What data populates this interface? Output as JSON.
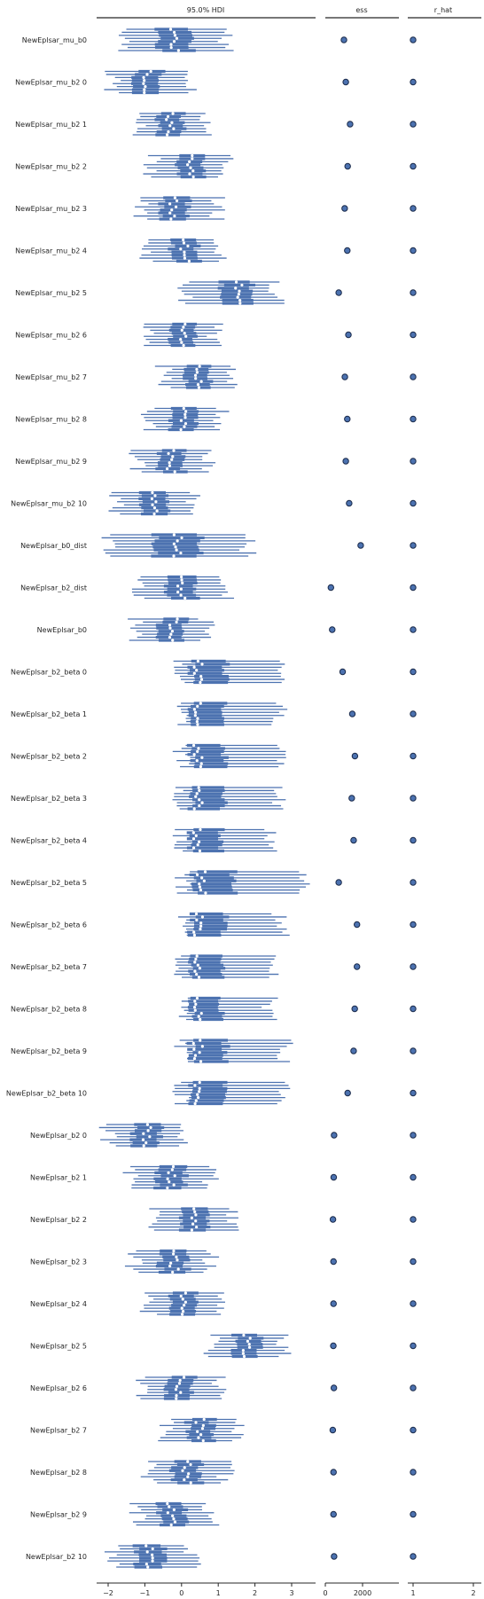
{
  "chart_data": {
    "type": "forest",
    "panels": {
      "hdi": {
        "title": "95.0% HDI",
        "xlim": [
          -2.3,
          3.6
        ],
        "ticks": [
          -2,
          -1,
          0,
          1,
          2,
          3
        ],
        "tick_labels": [
          "−2",
          "−1",
          "0",
          "1",
          "2",
          "3"
        ]
      },
      "ess": {
        "title": "ess",
        "xlim": [
          0,
          2000
        ],
        "ticks": [
          0,
          2000
        ],
        "tick_labels": [
          "0",
          "2000"
        ]
      },
      "r_hat": {
        "title": "r_hat",
        "xlim": [
          0.92,
          2.2
        ],
        "ticks": [
          1,
          2
        ],
        "tick_labels": [
          "1",
          "2"
        ]
      }
    },
    "variables": [
      {
        "label": "NewEplsar_mu_b0",
        "mean": -0.2,
        "hdi_low": -1.5,
        "hdi_high": 1.2,
        "ess": 1000,
        "r_hat": 1.0
      },
      {
        "label": "NewEplsar_mu_b2 0",
        "mean": -0.95,
        "hdi_low": -1.9,
        "hdi_high": 0.2,
        "ess": 1100,
        "r_hat": 1.0
      },
      {
        "label": "NewEplsar_mu_b2 1",
        "mean": -0.3,
        "hdi_low": -1.2,
        "hdi_high": 0.7,
        "ess": 1330,
        "r_hat": 1.0
      },
      {
        "label": "NewEplsar_mu_b2 2",
        "mean": 0.2,
        "hdi_low": -0.8,
        "hdi_high": 1.2,
        "ess": 1200,
        "r_hat": 1.0
      },
      {
        "label": "NewEplsar_mu_b2 3",
        "mean": -0.2,
        "hdi_low": -1.1,
        "hdi_high": 1.0,
        "ess": 1040,
        "r_hat": 1.0
      },
      {
        "label": "NewEplsar_mu_b2 4",
        "mean": 0.1,
        "hdi_low": -0.9,
        "hdi_high": 1.1,
        "ess": 1180,
        "r_hat": 1.0
      },
      {
        "label": "NewEplsar_mu_b2 5",
        "mean": 1.55,
        "hdi_low": 0.1,
        "hdi_high": 2.6,
        "ess": 720,
        "r_hat": 1.0
      },
      {
        "label": "NewEplsar_mu_b2 6",
        "mean": 0.0,
        "hdi_low": -1.0,
        "hdi_high": 0.9,
        "ess": 1240,
        "r_hat": 1.0
      },
      {
        "label": "NewEplsar_mu_b2 7",
        "mean": 0.5,
        "hdi_low": -0.5,
        "hdi_high": 1.4,
        "ess": 1050,
        "r_hat": 1.0
      },
      {
        "label": "NewEplsar_mu_b2 8",
        "mean": 0.1,
        "hdi_low": -0.9,
        "hdi_high": 1.1,
        "ess": 1180,
        "r_hat": 1.0
      },
      {
        "label": "NewEplsar_mu_b2 9",
        "mean": -0.3,
        "hdi_low": -1.2,
        "hdi_high": 0.7,
        "ess": 1100,
        "r_hat": 1.0
      },
      {
        "label": "NewEplsar_mu_b2 10",
        "mean": -0.75,
        "hdi_low": -1.8,
        "hdi_high": 0.3,
        "ess": 1280,
        "r_hat": 1.0
      },
      {
        "label": "NewEplsar_b0_dist",
        "mean": -0.1,
        "hdi_low": -2.0,
        "hdi_high": 1.8,
        "ess": 1900,
        "r_hat": 1.0
      },
      {
        "label": "NewEplsar_b2_dist",
        "mean": 0.0,
        "hdi_low": -1.1,
        "hdi_high": 1.2,
        "ess": 300,
        "r_hat": 1.0
      },
      {
        "label": "NewEplsar_b0",
        "mean": -0.2,
        "hdi_low": -1.3,
        "hdi_high": 0.7,
        "ess": 370,
        "r_hat": 1.0
      },
      {
        "label": "NewEplsar_b2_beta 0",
        "mean": 0.45,
        "hdi_low": 0.0,
        "hdi_high": 2.8,
        "ess": 930,
        "r_hat": 1.0
      },
      {
        "label": "NewEplsar_b2_beta 1",
        "mean": 0.45,
        "hdi_low": 0.0,
        "hdi_high": 2.7,
        "ess": 1450,
        "r_hat": 1.0
      },
      {
        "label": "NewEplsar_b2_beta 2",
        "mean": 0.45,
        "hdi_low": 0.0,
        "hdi_high": 2.7,
        "ess": 1590,
        "r_hat": 1.0
      },
      {
        "label": "NewEplsar_b2_beta 3",
        "mean": 0.45,
        "hdi_low": 0.0,
        "hdi_high": 2.6,
        "ess": 1420,
        "r_hat": 1.0
      },
      {
        "label": "NewEplsar_b2_beta 4",
        "mean": 0.45,
        "hdi_low": 0.0,
        "hdi_high": 2.5,
        "ess": 1520,
        "r_hat": 1.0
      },
      {
        "label": "NewEplsar_b2_beta 5",
        "mean": 0.55,
        "hdi_low": 0.0,
        "hdi_high": 3.3,
        "ess": 720,
        "r_hat": 1.0
      },
      {
        "label": "NewEplsar_b2_beta 6",
        "mean": 0.45,
        "hdi_low": 0.0,
        "hdi_high": 2.7,
        "ess": 1700,
        "r_hat": 1.0
      },
      {
        "label": "NewEplsar_b2_beta 7",
        "mean": 0.45,
        "hdi_low": 0.0,
        "hdi_high": 2.6,
        "ess": 1700,
        "r_hat": 1.0
      },
      {
        "label": "NewEplsar_b2_beta 8",
        "mean": 0.45,
        "hdi_low": 0.0,
        "hdi_high": 2.4,
        "ess": 1580,
        "r_hat": 1.0
      },
      {
        "label": "NewEplsar_b2_beta 9",
        "mean": 0.45,
        "hdi_low": 0.0,
        "hdi_high": 2.8,
        "ess": 1520,
        "r_hat": 1.0
      },
      {
        "label": "NewEplsar_b2_beta 10",
        "mean": 0.45,
        "hdi_low": 0.0,
        "hdi_high": 2.8,
        "ess": 1200,
        "r_hat": 1.0
      },
      {
        "label": "NewEplsar_b2 0",
        "mean": -0.95,
        "hdi_low": -2.0,
        "hdi_high": 0.1,
        "ess": 470,
        "r_hat": 1.0
      },
      {
        "label": "NewEplsar_b2 1",
        "mean": -0.3,
        "hdi_low": -1.4,
        "hdi_high": 0.8,
        "ess": 450,
        "r_hat": 1.0
      },
      {
        "label": "NewEplsar_b2 2",
        "mean": 0.3,
        "hdi_low": -0.7,
        "hdi_high": 1.4,
        "ess": 410,
        "r_hat": 1.0
      },
      {
        "label": "NewEplsar_b2 3",
        "mean": -0.2,
        "hdi_low": -1.3,
        "hdi_high": 0.8,
        "ess": 440,
        "r_hat": 1.0
      },
      {
        "label": "NewEplsar_b2 4",
        "mean": 0.1,
        "hdi_low": -0.9,
        "hdi_high": 1.1,
        "ess": 440,
        "r_hat": 1.0
      },
      {
        "label": "NewEplsar_b2 5",
        "mean": 1.75,
        "hdi_low": 0.8,
        "hdi_high": 2.8,
        "ess": 430,
        "r_hat": 1.0
      },
      {
        "label": "NewEplsar_b2 6",
        "mean": -0.05,
        "hdi_low": -1.0,
        "hdi_high": 1.0,
        "ess": 460,
        "r_hat": 1.0
      },
      {
        "label": "NewEplsar_b2 7",
        "mean": 0.5,
        "hdi_low": -0.4,
        "hdi_high": 1.5,
        "ess": 400,
        "r_hat": 1.0
      },
      {
        "label": "NewEplsar_b2 8",
        "mean": 0.15,
        "hdi_low": -0.9,
        "hdi_high": 1.2,
        "ess": 440,
        "r_hat": 1.0
      },
      {
        "label": "NewEplsar_b2 9",
        "mean": -0.3,
        "hdi_low": -1.2,
        "hdi_high": 0.8,
        "ess": 440,
        "r_hat": 1.0
      },
      {
        "label": "NewEplsar_b2 10",
        "mean": -0.85,
        "hdi_low": -1.9,
        "hdi_high": 0.3,
        "ess": 470,
        "r_hat": 1.0
      }
    ],
    "chains": 8,
    "colors": {
      "line": "#4c72b0",
      "marker_fill": "#4c72b0",
      "marker_edge": "#1a2a4a",
      "median": "#ffffff",
      "axis": "#262626"
    },
    "grid": false,
    "legend": "none"
  }
}
